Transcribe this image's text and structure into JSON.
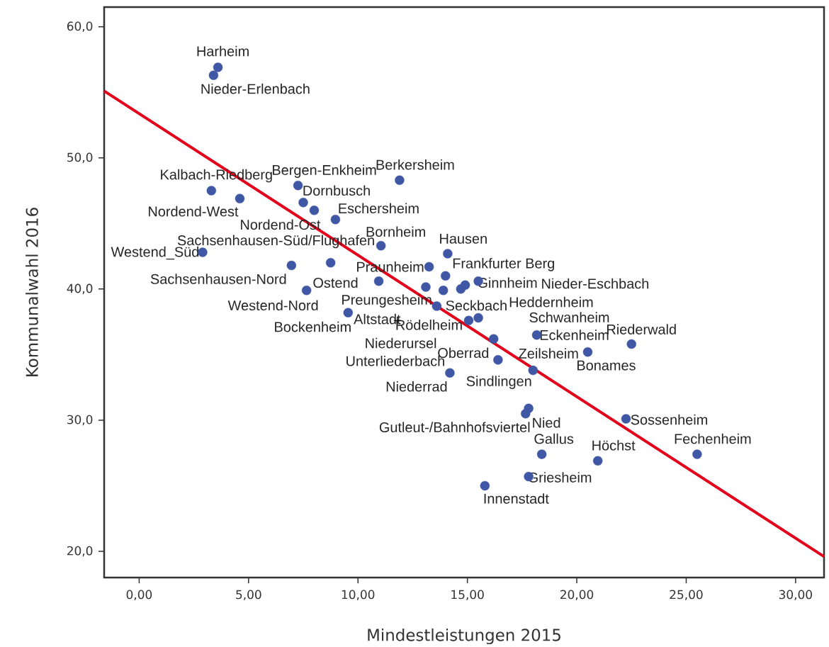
{
  "chart_data": {
    "type": "scatter",
    "xlabel": "Mindestleistungen 2015",
    "ylabel": "Kommunalwahl 2016",
    "xlim": [
      -1.6,
      31.3
    ],
    "ylim": [
      18.0,
      61.5
    ],
    "xticks": [
      {
        "value": 0,
        "label": "0,00"
      },
      {
        "value": 5,
        "label": "5,00"
      },
      {
        "value": 10,
        "label": "10,00"
      },
      {
        "value": 15,
        "label": "15,00"
      },
      {
        "value": 20,
        "label": "20,00"
      },
      {
        "value": 25,
        "label": "25,00"
      },
      {
        "value": 30,
        "label": "30,00"
      }
    ],
    "yticks": [
      {
        "value": 20,
        "label": "20,0"
      },
      {
        "value": 30,
        "label": "30,0"
      },
      {
        "value": 40,
        "label": "40,0"
      },
      {
        "value": 50,
        "label": "50,0"
      },
      {
        "value": 60,
        "label": "60,0"
      }
    ],
    "marker": "circle",
    "series": [
      {
        "color": "#3f57a5",
        "x": [
          3.6,
          3.4,
          3.3,
          4.6,
          7.26,
          7.5,
          8.0,
          8.97,
          11.9,
          2.9,
          6.96,
          8.75,
          11.05,
          14.1,
          13.25,
          14.0,
          10.95,
          7.65,
          13.1,
          13.9,
          14.7,
          14.9,
          15.5,
          13.6,
          9.55,
          15.06,
          15.5,
          16.2,
          18.17,
          20.5,
          22.5,
          16.4,
          18.0,
          14.2,
          17.66,
          17.8,
          22.25,
          18.4,
          20.96,
          17.8,
          15.8,
          25.5
        ],
        "values": [
          56.9,
          56.3,
          47.5,
          46.9,
          47.9,
          46.6,
          46.0,
          45.3,
          48.3,
          42.8,
          41.8,
          42.0,
          43.3,
          42.7,
          41.7,
          41.0,
          40.6,
          39.9,
          40.15,
          39.9,
          40.0,
          40.3,
          40.6,
          38.7,
          38.2,
          37.6,
          37.8,
          36.2,
          36.5,
          35.2,
          35.8,
          34.6,
          33.8,
          33.6,
          30.5,
          30.9,
          30.1,
          27.4,
          26.9,
          25.7,
          25.0,
          27.4
        ]
      },
      {
        "type": "scatter",
        "color": "#000000",
        "marker": "cross",
        "x": [
          11.8
        ],
        "values": [
          37.6
        ]
      },
      {
        "type": "line",
        "marker": "none",
        "color": "#e3001b",
        "x": [
          -1.6,
          31.3
        ],
        "values": [
          55.1,
          19.6
        ]
      }
    ],
    "annotations": [
      {
        "text": "Harheim",
        "x": 3.6,
        "y": 56.9
      },
      {
        "text": "Nieder-Erlenbach",
        "x": 3.4,
        "y": 56.3
      },
      {
        "text": "Kalbach-Riedberg",
        "x": 3.3,
        "y": 47.5
      },
      {
        "text": "Bergen-Enkheim",
        "x": 7.26,
        "y": 47.9
      },
      {
        "text": "Berkersheim",
        "x": 11.9,
        "y": 48.3
      },
      {
        "text": "Dornbusch",
        "x": 7.5,
        "y": 46.6
      },
      {
        "text": "Nordend-West",
        "x": 4.6,
        "y": 46.9
      },
      {
        "text": "Eschersheim",
        "x": 8.97,
        "y": 45.3
      },
      {
        "text": "Nordend-Ost",
        "x": 8.0,
        "y": 46.0
      },
      {
        "text": "Bornheim",
        "x": 11.05,
        "y": 43.3
      },
      {
        "text": "Hausen",
        "x": 14.1,
        "y": 42.7
      },
      {
        "text": "Westend_Süd",
        "x": 2.9,
        "y": 42.8
      },
      {
        "text": "Sachsenhausen-Süd/Flughafen",
        "x": 8.75,
        "y": 42.0
      },
      {
        "text": "Praunheim",
        "x": 13.25,
        "y": 41.7
      },
      {
        "text": "Frankfurter Berg",
        "x": 14.0,
        "y": 41.0
      },
      {
        "text": "Sachsenhausen-Nord",
        "x": 6.96,
        "y": 41.8
      },
      {
        "text": "Ostend",
        "x": 10.95,
        "y": 40.6
      },
      {
        "text": "Ginnheim",
        "x": 15.5,
        "y": 40.6
      },
      "Nieder-Eschbach",
      {
        "text": "Westend-Nord",
        "x": 7.65,
        "y": 39.9
      },
      {
        "text": "Preungesheim",
        "x": 13.9,
        "y": 39.9
      },
      "Heddernheim",
      {
        "text": "Seckbach",
        "x": 13.6,
        "y": 38.7
      },
      {
        "text": "Altstadt",
        "x": 9.55,
        "y": 38.2
      },
      {
        "text": "Bockenheim",
        "x": 9.55,
        "y": 38.2
      },
      {
        "text": "Rödelheim",
        "x": 15.06,
        "y": 37.6
      },
      {
        "text": "Schwanheim",
        "x": 18.17,
        "y": 36.5
      },
      {
        "text": "Riederwald",
        "x": 22.5,
        "y": 35.8
      },
      {
        "text": "Eckenheim",
        "x": 18.17,
        "y": 36.5
      },
      "Niederursel",
      {
        "text": "Oberrad",
        "x": 16.4,
        "y": 34.6
      },
      {
        "text": "Zeilsheim",
        "x": 18.0,
        "y": 33.8
      },
      {
        "text": "Unterliederbach",
        "x": 14.2,
        "y": 33.6
      },
      {
        "text": "Bonames",
        "x": 20.5,
        "y": 35.2
      },
      {
        "text": "Niederrad",
        "x": 14.2,
        "y": 33.6
      },
      {
        "text": "Sindlingen",
        "x": 18.0,
        "y": 33.8
      },
      {
        "text": "Sossenheim",
        "x": 22.25,
        "y": 30.1
      },
      {
        "text": "Gutleut-/Bahnhofsviertel",
        "x": 17.66,
        "y": 30.5
      },
      {
        "text": "Nied",
        "x": 17.8,
        "y": 30.9
      },
      {
        "text": "Fechenheim",
        "x": 25.5,
        "y": 27.4
      },
      {
        "text": "Gallus",
        "x": 18.4,
        "y": 27.4
      },
      {
        "text": "Höchst",
        "x": 20.96,
        "y": 26.9
      },
      {
        "text": "Griesheim",
        "x": 17.8,
        "y": 25.7
      },
      {
        "text": "Innenstadt",
        "x": 15.8,
        "y": 25.0
      }
    ]
  }
}
